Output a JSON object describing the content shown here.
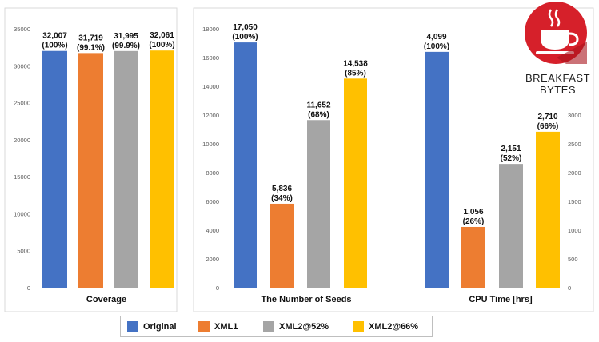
{
  "logo": {
    "text": "BREAKFAST BYTES",
    "icon": "coffee-cup-icon",
    "color": "#d6202a"
  },
  "legend": [
    {
      "name": "Original",
      "color": "#4472c4"
    },
    {
      "name": "XML1",
      "color": "#ed7d31"
    },
    {
      "name": "XML2@52%",
      "color": "#a5a5a5"
    },
    {
      "name": "XML2@66%",
      "color": "#ffc000"
    }
  ],
  "chart_data": [
    {
      "type": "bar",
      "xlabel": "Coverage",
      "ylim": [
        0,
        35000
      ],
      "yticks": [
        "0",
        "5000",
        "10000",
        "15000",
        "20000",
        "25000",
        "30000",
        "35000"
      ],
      "axis_side": "left",
      "series": [
        {
          "name": "Original",
          "values": [
            32007
          ],
          "label": "32,007",
          "pct": "(100%)"
        },
        {
          "name": "XML1",
          "values": [
            31719
          ],
          "label": "31,719",
          "pct": "(99.1%)"
        },
        {
          "name": "XML2@52%",
          "values": [
            31995
          ],
          "label": "31,995",
          "pct": "(99.9%)"
        },
        {
          "name": "XML2@66%",
          "values": [
            32061
          ],
          "label": "32,061",
          "pct": "(100%)"
        }
      ]
    },
    {
      "type": "bar",
      "xlabel": "The Number of Seeds",
      "ylim": [
        0,
        18000
      ],
      "yticks": [
        "0",
        "2000",
        "4000",
        "6000",
        "8000",
        "10000",
        "12000",
        "14000",
        "16000",
        "18000"
      ],
      "axis_side": "left",
      "series": [
        {
          "name": "Original",
          "values": [
            17050
          ],
          "label": "17,050",
          "pct": "(100%)"
        },
        {
          "name": "XML1",
          "values": [
            5836
          ],
          "label": "5,836",
          "pct": "(34%)"
        },
        {
          "name": "XML2@52%",
          "values": [
            11652
          ],
          "label": "11,652",
          "pct": "(68%)"
        },
        {
          "name": "XML2@66%",
          "values": [
            14538
          ],
          "label": "14,538",
          "pct": "(85%)"
        }
      ]
    },
    {
      "type": "bar",
      "xlabel": "CPU Time [hrs]",
      "ylim": [
        0,
        4500
      ],
      "yticks": [
        "0",
        "500",
        "1000",
        "1500",
        "2000",
        "2500",
        "3000"
      ],
      "axis_side": "right",
      "series": [
        {
          "name": "Original",
          "values": [
            4099
          ],
          "label": "4,099",
          "pct": "(100%)"
        },
        {
          "name": "XML1",
          "values": [
            1056
          ],
          "label": "1,056",
          "pct": "(26%)"
        },
        {
          "name": "XML2@52%",
          "values": [
            2151
          ],
          "label": "2,151",
          "pct": "(52%)"
        },
        {
          "name": "XML2@66%",
          "values": [
            2710
          ],
          "label": "2,710",
          "pct": "(66%)"
        }
      ]
    }
  ]
}
